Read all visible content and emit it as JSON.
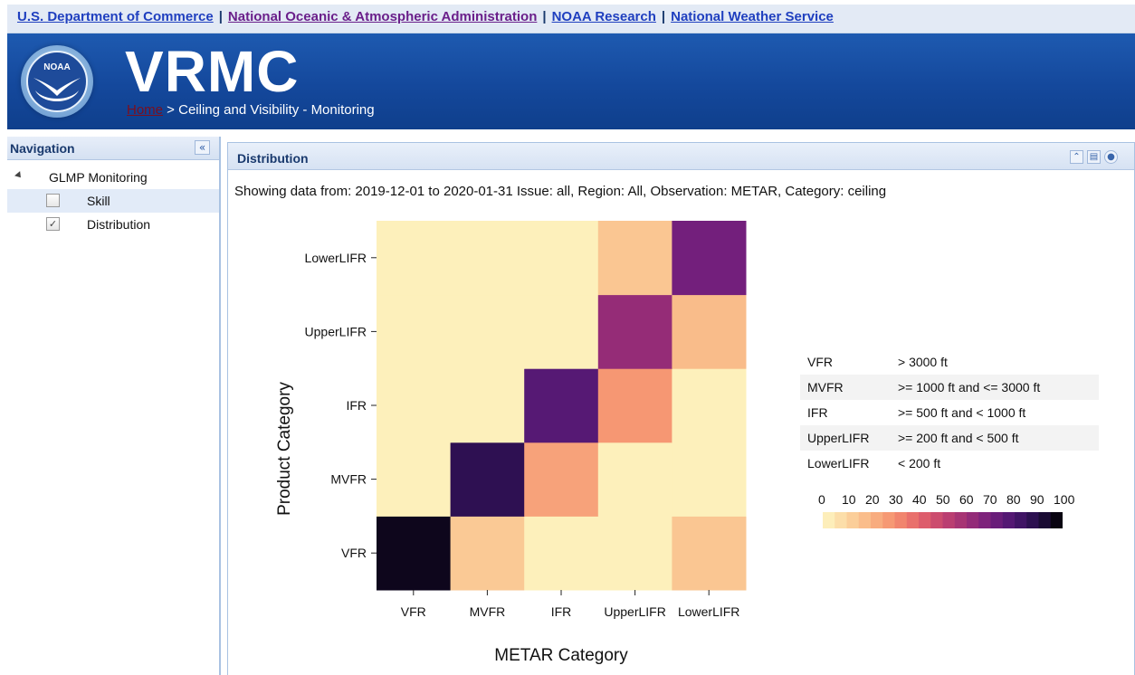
{
  "top_links": {
    "commerce": "U.S. Department of Commerce",
    "noaa": "National Oceanic & Atmospheric Administration",
    "research": "NOAA Research",
    "nws": "National Weather Service",
    "separator": "|"
  },
  "header": {
    "logo_text": "NOAA",
    "title": "VRMC",
    "breadcrumb_home": "Home",
    "breadcrumb_rest": " > Ceiling and Visibility - Monitoring"
  },
  "nav": {
    "title": "Navigation",
    "collapse_glyph": "«",
    "group": "GLMP Monitoring",
    "items": [
      {
        "label": "Skill",
        "checked": false
      },
      {
        "label": "Distribution",
        "checked": true
      }
    ]
  },
  "panel": {
    "title": "Distribution",
    "summary": "Showing data from: 2019-12-01 to 2020-01-31 Issue: all, Region: All, Observation: METAR, Category: ceiling"
  },
  "chart_data": {
    "type": "heatmap",
    "xlabel": "METAR Category",
    "ylabel": "Product Category",
    "x_categories": [
      "VFR",
      "MVFR",
      "IFR",
      "UpperLIFR",
      "LowerLIFR"
    ],
    "y_categories": [
      "VFR",
      "MVFR",
      "IFR",
      "UpperLIFR",
      "LowerLIFR"
    ],
    "values": [
      [
        96,
        14,
        2,
        2,
        15
      ],
      [
        2,
        87,
        25,
        2,
        2
      ],
      [
        2,
        2,
        77,
        28,
        2
      ],
      [
        2,
        2,
        2,
        62,
        18
      ],
      [
        2,
        2,
        2,
        15,
        70
      ]
    ],
    "colorbar": {
      "ticks": [
        0,
        10,
        20,
        30,
        40,
        50,
        60,
        70,
        80,
        90,
        100
      ],
      "colors": [
        "#fdf6c2",
        "#fbd6a0",
        "#f9b584",
        "#f58f6f",
        "#e5656b",
        "#c4436f",
        "#9d2f76",
        "#731f7c",
        "#4a1670",
        "#220e45",
        "#000000"
      ]
    }
  },
  "legend_table": [
    {
      "category": "VFR",
      "range": "> 3000 ft"
    },
    {
      "category": "MVFR",
      "range": ">= 1000 ft and <= 3000 ft"
    },
    {
      "category": "IFR",
      "range": ">= 500 ft and < 1000 ft"
    },
    {
      "category": "UpperLIFR",
      "range": ">= 200 ft and < 500 ft"
    },
    {
      "category": "LowerLIFR",
      "range": "< 200 ft"
    }
  ]
}
